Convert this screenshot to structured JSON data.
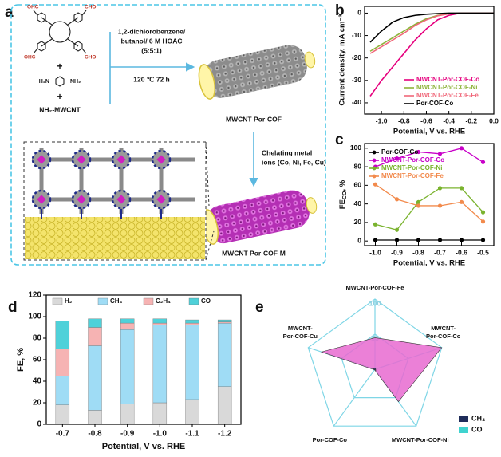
{
  "panel_labels": [
    "a",
    "b",
    "c",
    "d",
    "e"
  ],
  "scheme": {
    "aldehyde_labels": [
      "OHC",
      "CHO",
      "OHC",
      "CHO"
    ],
    "plus": [
      "+",
      "+"
    ],
    "diamine": [
      "H₂N",
      "NH₂"
    ],
    "support": "NH₂-MWCNT",
    "conditions": [
      "1,2-dichlorobenzene/",
      "butanol/ 6 M HOAC",
      "(5:5:1)"
    ],
    "temperature_time": "120 ℃ 72 h",
    "product": "MWCNT-Por-COF",
    "metalation": [
      "Chelating metal",
      "ions (Co, Ni, Fe, Cu)"
    ],
    "final_product": "MWCNT-Por-COF-M"
  },
  "chart_data": [
    {
      "type": "line",
      "xlabel": "Potential, V vs. RHE",
      "ylabel": "Current density, mA cm⁻²",
      "x": [
        -1.1,
        -1.0,
        -0.9,
        -0.8,
        -0.7,
        -0.6,
        -0.5,
        -0.4,
        -0.3,
        -0.2,
        -0.1,
        0.0
      ],
      "series": [
        {
          "name": "MWCNT-Por-COF-Co",
          "color": "#e6007e",
          "values": [
            -37,
            -30,
            -24,
            -18,
            -12,
            -7,
            -3,
            -1,
            0,
            0,
            0,
            0
          ]
        },
        {
          "name": "MWCNT-Por-COF-Ni",
          "color": "#8db33a",
          "values": [
            -17,
            -14,
            -11,
            -8,
            -5,
            -2.5,
            -1,
            -0.3,
            0,
            0,
            0,
            0
          ]
        },
        {
          "name": "MWCNT-Por-COF-Fe",
          "color": "#f0687a",
          "values": [
            -18,
            -15,
            -12,
            -9,
            -5.5,
            -3,
            -1.2,
            -0.3,
            0,
            0,
            0,
            0
          ]
        },
        {
          "name": "Por-COF-Co",
          "color": "#000000",
          "values": [
            -13,
            -8,
            -4,
            -2,
            -1,
            -0.5,
            -0.2,
            0,
            0,
            0,
            0,
            0
          ]
        }
      ],
      "xlim": [
        -1.15,
        0.0
      ],
      "ylim": [
        -45,
        3
      ],
      "xticks": [
        {
          "value": -1,
          "label": "-1.0"
        },
        -0.8,
        -0.6,
        -0.4,
        -0.2,
        {
          "value": 0,
          "label": "0.0"
        }
      ],
      "yticks": [
        -40,
        -30,
        -20,
        -10,
        0
      ],
      "markers": false,
      "legend": "lower-right"
    },
    {
      "type": "line",
      "xlabel": "Potential, V vs. RHE",
      "ylabel": {
        "main": "FE",
        "sub": "CO",
        "suffix": ", %"
      },
      "x": [
        -1.0,
        -0.9,
        -0.8,
        -0.7,
        -0.6,
        -0.5
      ],
      "series": [
        {
          "name": "Por-COF-Co",
          "color": "#000000",
          "values": [
            1,
            1,
            1,
            1,
            1,
            1
          ]
        },
        {
          "name": "MWCNT-Por-COF-Co",
          "color": "#c800c8",
          "values": [
            80,
            89,
            96,
            94,
            100,
            85
          ]
        },
        {
          "name": "MWCNT-Por-COF-Ni",
          "color": "#7ab32e",
          "values": [
            18,
            12,
            42,
            57,
            57,
            31
          ]
        },
        {
          "name": "MWCNT-Por-COF-Fe",
          "color": "#f28a4c",
          "values": [
            61,
            45,
            38,
            38,
            42,
            21
          ]
        }
      ],
      "xlim": [
        -1.05,
        -0.45
      ],
      "ylim": [
        -5,
        105
      ],
      "xticks": [
        {
          "value": -1,
          "label": "-1.0"
        },
        -0.9,
        -0.8,
        -0.7,
        -0.6,
        -0.5
      ],
      "yticks": [
        0,
        20,
        40,
        60,
        80,
        100
      ],
      "markers": true,
      "legend": "upper-left"
    },
    {
      "type": "stacked_bar",
      "xlabel": "Potential, V vs. RHE",
      "ylabel": "FE, %",
      "categories": [
        "-0.7",
        "-0.8",
        "-0.9",
        "-1.0",
        "-1.1",
        "-1.2"
      ],
      "series": [
        {
          "name": "H₂",
          "color": "#d9d9d9",
          "values": [
            18,
            13,
            19,
            20,
            23,
            35
          ]
        },
        {
          "name": "CH₄",
          "color": "#9fdcf5",
          "values": [
            27,
            60,
            69,
            72,
            69,
            59
          ]
        },
        {
          "name": "C₂H₄",
          "color": "#f6b3b3",
          "values": [
            25,
            17,
            6,
            2,
            2,
            1
          ]
        },
        {
          "name": "CO",
          "color": "#4fd1d9",
          "values": [
            26,
            8,
            4,
            4,
            3,
            2
          ]
        }
      ],
      "ylim": [
        0,
        120
      ],
      "yticks": [
        0,
        20,
        40,
        60,
        80,
        100,
        120
      ],
      "legend": "top"
    },
    {
      "type": "radar",
      "axes": [
        [
          "MWCNT-Por-COF-Fe"
        ],
        [
          "MWCNT-",
          "Por-COF-Co"
        ],
        [
          "MWCNT-Por-COF-Ni"
        ],
        [
          "Por-COF-Co"
        ],
        [
          "MWCNT-",
          "Por-COF-Cu"
        ]
      ],
      "rlim": [
        0,
        100
      ],
      "rticks": [
        50,
        100
      ],
      "series": [
        {
          "name": "CO",
          "color": "#3fd3cf",
          "fill": "#e86ad0",
          "values": [
            45,
            100,
            57,
            1,
            80
          ]
        },
        {
          "name": "CH₄",
          "color": "#1f2d5a",
          "values": [
            2,
            1,
            2,
            1,
            3
          ]
        }
      ],
      "legend": "lower-right"
    }
  ]
}
